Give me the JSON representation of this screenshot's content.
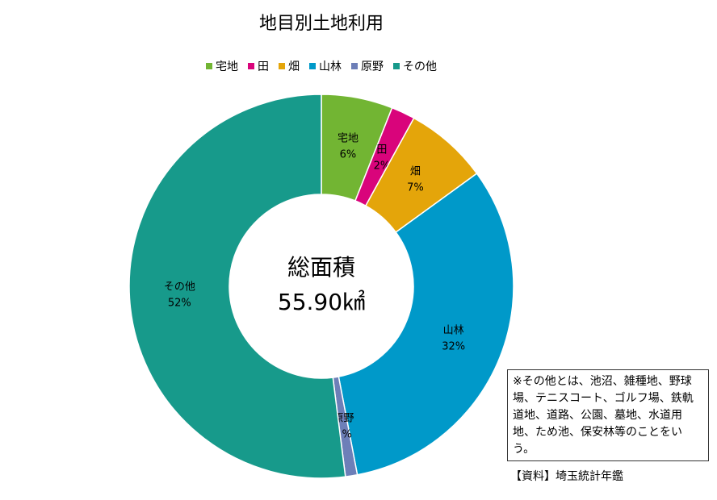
{
  "chart_data": {
    "type": "pie",
    "donut": true,
    "title": "地目別土地利用",
    "categories": [
      "宅地",
      "田",
      "畑",
      "山林",
      "原野",
      "その他"
    ],
    "values": [
      6,
      2,
      7,
      32,
      1,
      52
    ],
    "value_labels": [
      "6%",
      "2%",
      "7%",
      "32%",
      "1%",
      "52%"
    ],
    "colors": [
      "#72b533",
      "#d9047b",
      "#e4a50a",
      "#0099c9",
      "#6d7fb8",
      "#179a8b"
    ],
    "legend": "top",
    "center_text": {
      "title": "総面積",
      "value": "55.90㎢"
    }
  },
  "note": "※その他とは、池沼、雑種地、野球場、テニスコート、ゴルフ場、鉄軌道地、道路、公園、墓地、水道用地、ため池、保安林等のことをいう。",
  "source": "【資料】埼玉統計年鑑"
}
